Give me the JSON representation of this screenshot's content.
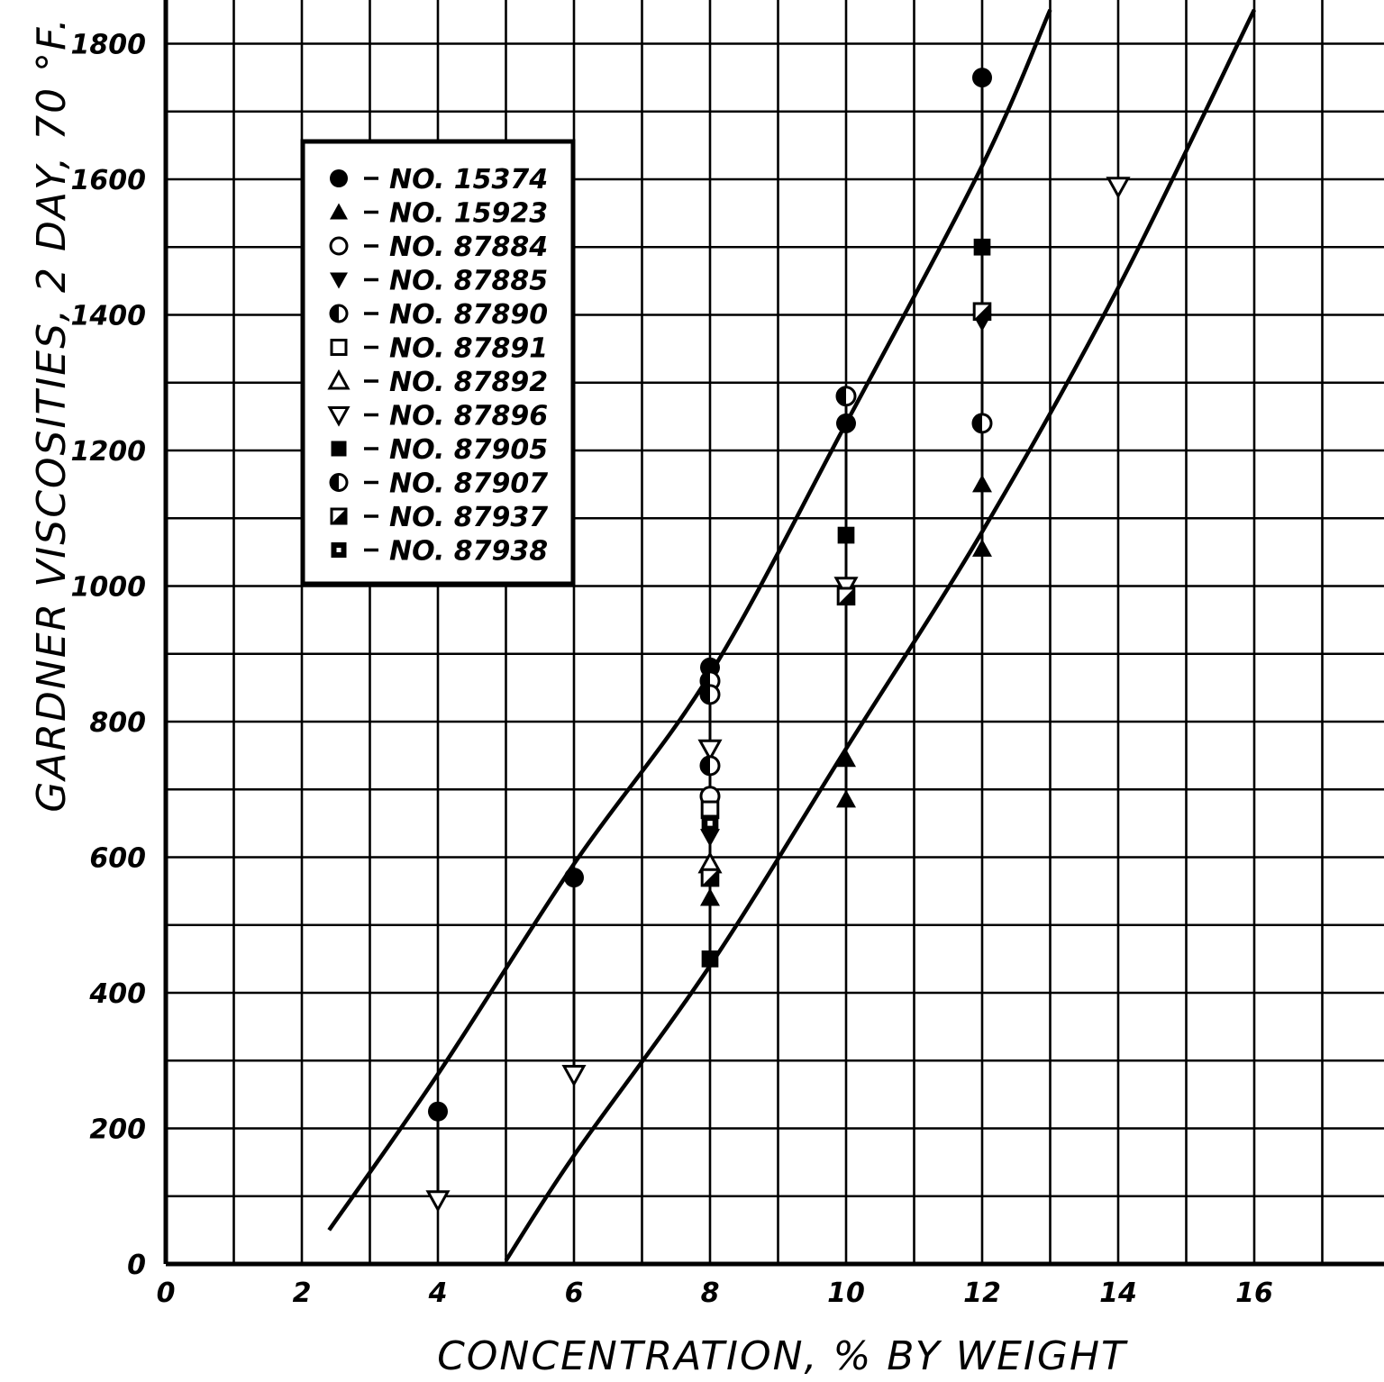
{
  "chart_data": {
    "type": "scatter",
    "xlabel": "CONCENTRATION, % BY WEIGHT",
    "ylabel": "GARDNER VISCOSITIES, 2 DAY, 70 °F.",
    "xlim": [
      0,
      18
    ],
    "ylim": [
      0,
      1850
    ],
    "x_ticks": [
      {
        "value": 0,
        "label": "0"
      },
      {
        "value": 2,
        "label": "2"
      },
      {
        "value": 4,
        "label": "4"
      },
      {
        "value": 6,
        "label": "6"
      },
      {
        "value": 8,
        "label": "8"
      },
      {
        "value": 10,
        "label": "10"
      },
      {
        "value": 12,
        "label": "12"
      },
      {
        "value": 14,
        "label": "14"
      },
      {
        "value": 16,
        "label": "16"
      }
    ],
    "y_ticks": [
      {
        "value": 0,
        "label": "0"
      },
      {
        "value": 200,
        "label": "200"
      },
      {
        "value": 400,
        "label": "400"
      },
      {
        "value": 600,
        "label": "600"
      },
      {
        "value": 800,
        "label": "800"
      },
      {
        "value": 1000,
        "label": "1000"
      },
      {
        "value": 1200,
        "label": "1200"
      },
      {
        "value": 1400,
        "label": "1400"
      },
      {
        "value": 1600,
        "label": "1600"
      },
      {
        "value": 1800,
        "label": "1800"
      }
    ],
    "grid": true,
    "legend_position": "upper-left",
    "series": [
      {
        "name": "NO. 15374",
        "marker": "circle-filled",
        "points": [
          [
            4,
            225
          ],
          [
            6,
            570
          ],
          [
            8,
            880
          ],
          [
            10,
            1240
          ],
          [
            12,
            1750
          ]
        ]
      },
      {
        "name": "NO. 15923",
        "marker": "triangle-up-filled",
        "points": [
          [
            8,
            540
          ],
          [
            10,
            685
          ],
          [
            10,
            745
          ],
          [
            12,
            1055
          ],
          [
            12,
            1150
          ]
        ]
      },
      {
        "name": "NO. 87884",
        "marker": "circle-open",
        "points": [
          [
            8,
            690
          ]
        ]
      },
      {
        "name": "NO. 87885",
        "marker": "triangle-down-filled",
        "points": [
          [
            8,
            630
          ],
          [
            12,
            1390
          ]
        ]
      },
      {
        "name": "NO. 87890",
        "marker": "circle-half",
        "points": [
          [
            8,
            860
          ],
          [
            10,
            1280
          ]
        ]
      },
      {
        "name": "NO. 87891",
        "marker": "square-open",
        "points": [
          [
            8,
            670
          ]
        ]
      },
      {
        "name": "NO. 87892",
        "marker": "triangle-up-open",
        "points": [
          [
            8,
            590
          ]
        ]
      },
      {
        "name": "NO. 87896",
        "marker": "triangle-down-open",
        "points": [
          [
            4,
            95
          ],
          [
            6,
            280
          ],
          [
            8,
            760
          ],
          [
            10,
            1000
          ],
          [
            14,
            1590
          ]
        ]
      },
      {
        "name": "NO. 87905",
        "marker": "square-filled",
        "points": [
          [
            8,
            450
          ],
          [
            10,
            1075
          ],
          [
            12,
            1500
          ]
        ]
      },
      {
        "name": "NO. 87907",
        "marker": "circle-half",
        "points": [
          [
            8,
            840
          ],
          [
            8,
            735
          ],
          [
            12,
            1240
          ]
        ]
      },
      {
        "name": "NO. 87937",
        "marker": "square-half",
        "points": [
          [
            8,
            570
          ],
          [
            10,
            985
          ],
          [
            12,
            1405
          ]
        ]
      },
      {
        "name": "NO. 87938",
        "marker": "square-dot",
        "points": [
          [
            8,
            650
          ]
        ]
      }
    ],
    "curves": [
      {
        "points": [
          [
            2.4,
            50
          ],
          [
            4,
            280
          ],
          [
            6,
            590
          ],
          [
            8,
            870
          ],
          [
            10,
            1240
          ],
          [
            12,
            1620
          ],
          [
            13,
            1850
          ]
        ]
      },
      {
        "points": [
          [
            5,
            5
          ],
          [
            6,
            160
          ],
          [
            8,
            440
          ],
          [
            10,
            760
          ],
          [
            12,
            1080
          ],
          [
            14,
            1440
          ],
          [
            16,
            1850
          ]
        ]
      }
    ]
  },
  "colors": {
    "ink": "#000000",
    "background": "#ffffff"
  }
}
